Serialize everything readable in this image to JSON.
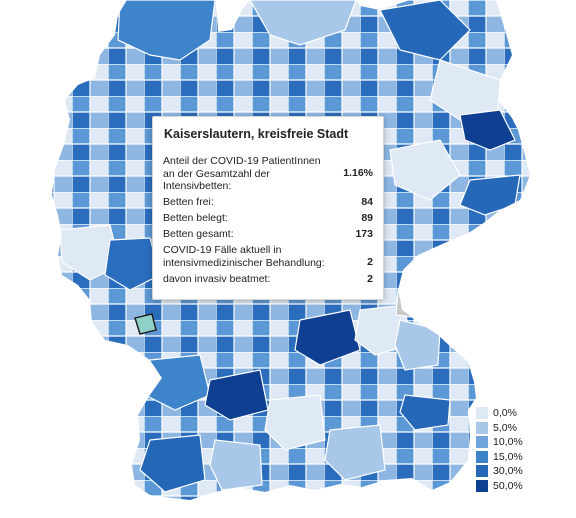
{
  "tooltip": {
    "title": "Kaiserslautern, kreisfreie Stadt",
    "rows": [
      {
        "label": "Anteil der COVID-19 PatientInnen an der Gesamtzahl der Intensivbetten:",
        "value": "1.16%"
      },
      {
        "label": "Betten frei:",
        "value": "84"
      },
      {
        "label": "Betten belegt:",
        "value": "89"
      },
      {
        "label": "Betten gesamt:",
        "value": "173"
      },
      {
        "label": "COVID-19 Fälle aktuell in intensivmedizinischer Behandlung:",
        "value": "2"
      },
      {
        "label": "davon invasiv beatmet:",
        "value": "2"
      }
    ]
  },
  "legend": {
    "items": [
      {
        "label": "0,0%",
        "color": "#dfe8f5"
      },
      {
        "label": "5,0%",
        "color": "#a9c8e9"
      },
      {
        "label": "10,0%",
        "color": "#6ea4da"
      },
      {
        "label": "15,0%",
        "color": "#3d84cb"
      },
      {
        "label": "30,0%",
        "color": "#2668b8"
      },
      {
        "label": "50,0%",
        "color": "#0f3f91"
      }
    ]
  },
  "map": {
    "highlight_region": "Kaiserslautern, kreisfreie Stadt",
    "highlight_color": "#8fd0c8",
    "no_data_color": "#c9c9c9"
  }
}
